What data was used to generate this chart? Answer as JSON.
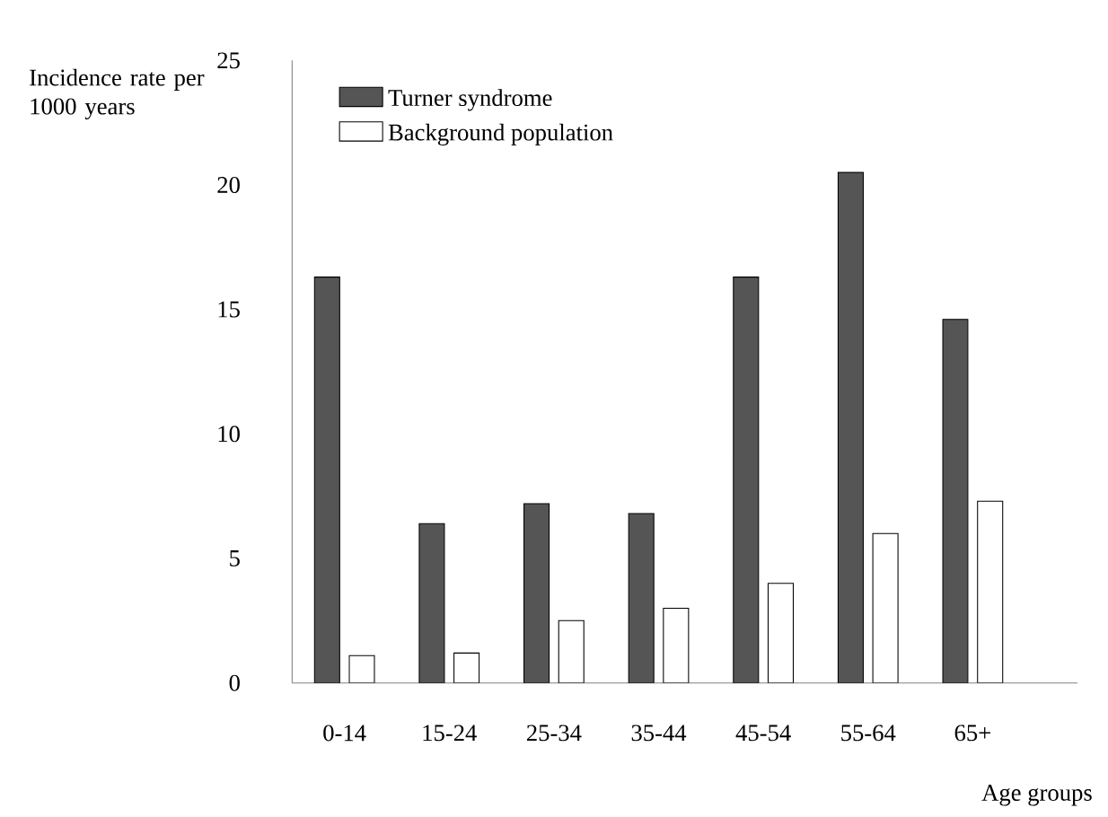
{
  "chart_data": {
    "type": "bar",
    "ylabel": "Incidence rate per 1000 years",
    "xlabel": "Age groups",
    "categories": [
      "0-14",
      "15-24",
      "25-34",
      "35-44",
      "45-54",
      "55-64",
      "65+"
    ],
    "series": [
      {
        "name": "Turner syndrome",
        "color": "#555555",
        "values": [
          16.3,
          6.4,
          7.2,
          6.8,
          16.3,
          20.5,
          14.6
        ]
      },
      {
        "name": "Background population",
        "color": "#ffffff",
        "values": [
          1.1,
          1.2,
          2.5,
          3.0,
          4.0,
          6.0,
          7.3
        ]
      }
    ],
    "ylim": [
      0,
      25
    ],
    "yticks": [
      0,
      5,
      10,
      15,
      20,
      25
    ],
    "legend": "top left",
    "grid": false
  }
}
